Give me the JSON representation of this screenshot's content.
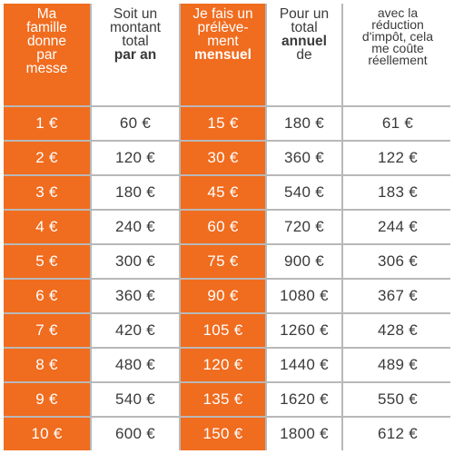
{
  "headers": {
    "col1": [
      "Ma",
      "famille",
      "donne",
      "par",
      "messe"
    ],
    "col2_plain": [
      "Soit un",
      "montant",
      "total"
    ],
    "col2_bold": "par an",
    "col3_plain": [
      "Je fais un",
      "prélève-",
      "ment"
    ],
    "col3_bold": "mensuel",
    "col4_plain1": [
      "Pour un",
      "total"
    ],
    "col4_bold": "annuel",
    "col4_plain2": "de",
    "col5": [
      "avec la",
      "réduction",
      "d'impôt, cela",
      "me coûte",
      "réellement"
    ]
  },
  "rows": [
    {
      "don": "1 €",
      "annuel": "60 €",
      "mensuel": "15 €",
      "total": "180 €",
      "reel": "61 €"
    },
    {
      "don": "2 €",
      "annuel": "120 €",
      "mensuel": "30 €",
      "total": "360 €",
      "reel": "122 €"
    },
    {
      "don": "3 €",
      "annuel": "180 €",
      "mensuel": "45 €",
      "total": "540 €",
      "reel": "183 €"
    },
    {
      "don": "4 €",
      "annuel": "240 €",
      "mensuel": "60 €",
      "total": "720 €",
      "reel": "244 €"
    },
    {
      "don": "5 €",
      "annuel": "300 €",
      "mensuel": "75 €",
      "total": "900 €",
      "reel": "306 €"
    },
    {
      "don": "6 €",
      "annuel": "360 €",
      "mensuel": "90 €",
      "total": "1080 €",
      "reel": "367 €"
    },
    {
      "don": "7 €",
      "annuel": "420 €",
      "mensuel": "105 €",
      "total": "1260 €",
      "reel": "428 €"
    },
    {
      "don": "8 €",
      "annuel": "480 €",
      "mensuel": "120 €",
      "total": "1440 €",
      "reel": "489 €"
    },
    {
      "don": "9 €",
      "annuel": "540 €",
      "mensuel": "135 €",
      "total": "1620 €",
      "reel": "550 €"
    },
    {
      "don": "10 €",
      "annuel": "600 €",
      "mensuel": "150 €",
      "total": "1800 €",
      "reel": "612 €"
    }
  ],
  "colors": {
    "accent": "#f06c1f",
    "text": "#3a3a3a",
    "grid": "#b8b8b8"
  }
}
